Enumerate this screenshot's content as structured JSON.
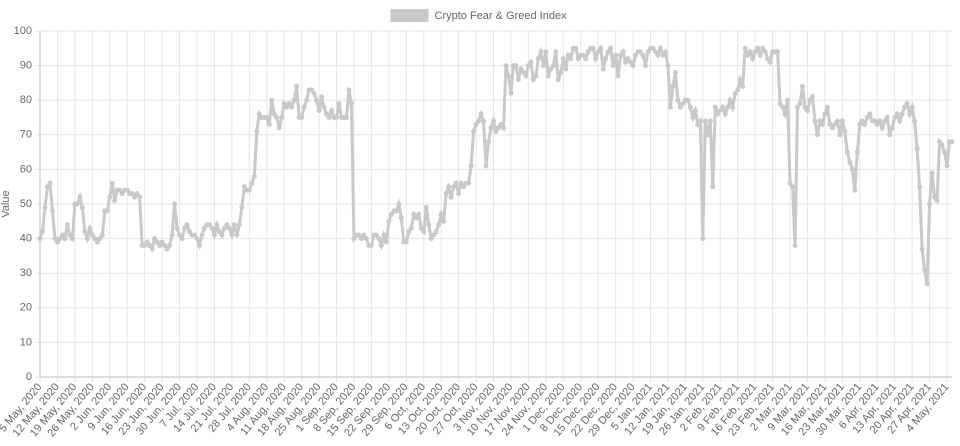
{
  "chart_data": {
    "type": "line",
    "y_label": "Value",
    "categories": [
      "5 May, 2020",
      null,
      null,
      null,
      null,
      null,
      null,
      "12 May, 2020",
      null,
      null,
      null,
      null,
      null,
      null,
      "19 May, 2020",
      null,
      null,
      null,
      null,
      null,
      null,
      "26 May, 2020",
      null,
      null,
      null,
      null,
      null,
      null,
      "2 Jun, 2020",
      null,
      null,
      null,
      null,
      null,
      null,
      "9 Jun, 2020",
      null,
      null,
      null,
      null,
      null,
      null,
      "16 Jun, 2020",
      null,
      null,
      null,
      null,
      null,
      null,
      "23 Jun, 2020",
      null,
      null,
      null,
      null,
      null,
      null,
      "30 Jun, 2020",
      null,
      null,
      null,
      null,
      null,
      null,
      "7 Jul, 2020",
      null,
      null,
      null,
      null,
      null,
      null,
      "14 Jul, 2020",
      null,
      null,
      null,
      null,
      null,
      null,
      "21 Jul, 2020",
      null,
      null,
      null,
      null,
      null,
      null,
      "28 Jul, 2020",
      null,
      null,
      null,
      null,
      null,
      null,
      "4 Aug, 2020",
      null,
      null,
      null,
      null,
      null,
      null,
      "11 Aug, 2020",
      null,
      null,
      null,
      null,
      null,
      null,
      "18 Aug, 2020",
      null,
      null,
      null,
      null,
      null,
      null,
      "25 Aug, 2020",
      null,
      null,
      null,
      null,
      null,
      null,
      "1 Sep, 2020",
      null,
      null,
      null,
      null,
      null,
      null,
      "8 Sep, 2020",
      null,
      null,
      null,
      null,
      null,
      null,
      "15 Sep, 2020",
      null,
      null,
      null,
      null,
      null,
      null,
      "22 Sep, 2020",
      null,
      null,
      null,
      null,
      null,
      null,
      "29 Sep, 2020",
      null,
      null,
      null,
      null,
      null,
      null,
      "6 Oct, 2020",
      null,
      null,
      null,
      null,
      null,
      null,
      "13 Oct, 2020",
      null,
      null,
      null,
      null,
      null,
      null,
      "20 Oct, 2020",
      null,
      null,
      null,
      null,
      null,
      null,
      "27 Oct, 2020",
      null,
      null,
      null,
      null,
      null,
      null,
      "3 Nov, 2020",
      null,
      null,
      null,
      null,
      null,
      null,
      "10 Nov, 2020",
      null,
      null,
      null,
      null,
      null,
      null,
      "17 Nov, 2020",
      null,
      null,
      null,
      null,
      null,
      null,
      "24 Nov, 2020",
      null,
      null,
      null,
      null,
      null,
      null,
      "1 Dec, 2020",
      null,
      null,
      null,
      null,
      null,
      null,
      "8 Dec, 2020",
      null,
      null,
      null,
      null,
      null,
      null,
      "15 Dec, 2020",
      null,
      null,
      null,
      null,
      null,
      null,
      "22 Dec, 2020",
      null,
      null,
      null,
      null,
      null,
      null,
      "29 Dec, 2020",
      null,
      null,
      null,
      null,
      null,
      null,
      "5 Jan, 2021",
      null,
      null,
      null,
      null,
      null,
      null,
      "12 Jan, 2021",
      null,
      null,
      null,
      null,
      null,
      null,
      "19 Jan, 2021",
      null,
      null,
      null,
      null,
      null,
      null,
      "26 Jan, 2021",
      null,
      null,
      null,
      null,
      null,
      null,
      "2 Feb, 2021",
      null,
      null,
      null,
      null,
      null,
      null,
      "9 Feb, 2021",
      null,
      null,
      null,
      null,
      null,
      null,
      "16 Feb, 2021",
      null,
      null,
      null,
      null,
      null,
      null,
      "23 Feb, 2021",
      null,
      null,
      null,
      null,
      null,
      null,
      "2 Mar, 2021",
      null,
      null,
      null,
      null,
      null,
      null,
      "9 Mar, 2021",
      null,
      null,
      null,
      null,
      null,
      null,
      "16 Mar, 2021",
      null,
      null,
      null,
      null,
      null,
      null,
      "23 Mar, 2021",
      null,
      null,
      null,
      null,
      null,
      null,
      "30 Mar, 2021",
      null,
      null,
      null,
      null,
      null,
      null,
      "6 Apr, 2021",
      null,
      null,
      null,
      null,
      null,
      null,
      "13 Apr, 2021",
      null,
      null,
      null,
      null,
      null,
      null,
      "20 Apr, 2021",
      null,
      null,
      null,
      null,
      null,
      null,
      "27 Apr, 2021",
      null,
      null,
      null,
      null,
      null,
      null,
      "4 May, 2021",
      null,
      null
    ],
    "series": [
      {
        "name": "Crypto Fear & Greed Index",
        "color": "#c9c9c9",
        "values": [
          40,
          42,
          49,
          55,
          56,
          48,
          40,
          39,
          40,
          41,
          40,
          44,
          41,
          40,
          50,
          50,
          52,
          49,
          42,
          40,
          43,
          41,
          40,
          39,
          40,
          41,
          48,
          48,
          52,
          56,
          51,
          54,
          54,
          53,
          54,
          54,
          53,
          53,
          52,
          53,
          52,
          38,
          38,
          39,
          38,
          37,
          40,
          39,
          38,
          39,
          38,
          37,
          38,
          41,
          50,
          43,
          41,
          40,
          43,
          44,
          42,
          41,
          41,
          40,
          38,
          41,
          43,
          44,
          44,
          43,
          41,
          44,
          42,
          41,
          43,
          44,
          43,
          41,
          44,
          41,
          44,
          49,
          55,
          54,
          54,
          56,
          58,
          71,
          76,
          75,
          75,
          75,
          73,
          80,
          76,
          75,
          72,
          75,
          79,
          78,
          79,
          78,
          80,
          84,
          75,
          75,
          78,
          80,
          83,
          83,
          82,
          80,
          77,
          81,
          78,
          76,
          75,
          77,
          75,
          75,
          79,
          75,
          75,
          75,
          83,
          79,
          40,
          41,
          41,
          40,
          41,
          40,
          38,
          38,
          41,
          41,
          40,
          38,
          41,
          39,
          45,
          47,
          48,
          48,
          50,
          46,
          39,
          39,
          42,
          43,
          47,
          46,
          47,
          43,
          42,
          49,
          44,
          40,
          41,
          42,
          44,
          47,
          45,
          53,
          55,
          52,
          55,
          56,
          53,
          56,
          55,
          56,
          56,
          61,
          71,
          73,
          74,
          76,
          74,
          61,
          68,
          72,
          74,
          71,
          72,
          73,
          72,
          90,
          87,
          82,
          90,
          90,
          86,
          89,
          88,
          87,
          90,
          91,
          86,
          87,
          92,
          94,
          90,
          94,
          87,
          89,
          90,
          94,
          86,
          88,
          92,
          89,
          93,
          92,
          95,
          95,
          92,
          93,
          93,
          92,
          94,
          95,
          95,
          92,
          94,
          95,
          89,
          92,
          94,
          95,
          90,
          93,
          87,
          93,
          94,
          91,
          92,
          91,
          90,
          93,
          94,
          94,
          93,
          90,
          94,
          95,
          95,
          94,
          93,
          95,
          93,
          94,
          90,
          78,
          84,
          88,
          80,
          78,
          79,
          80,
          80,
          78,
          75,
          77,
          73,
          74,
          40,
          74,
          70,
          74,
          55,
          78,
          76,
          77,
          78,
          76,
          78,
          80,
          78,
          82,
          83,
          86,
          84,
          95,
          93,
          94,
          92,
          94,
          95,
          93,
          95,
          94,
          92,
          91,
          94,
          94,
          94,
          79,
          78,
          76,
          80,
          56,
          55,
          38,
          78,
          79,
          84,
          78,
          77,
          80,
          81,
          74,
          70,
          74,
          73,
          76,
          78,
          73,
          72,
          73,
          74,
          70,
          74,
          71,
          65,
          62,
          60,
          54,
          65,
          73,
          74,
          73,
          75,
          76,
          74,
          74,
          73,
          74,
          72,
          74,
          75,
          70,
          72,
          75,
          76,
          74,
          76,
          78,
          79,
          76,
          78,
          74,
          66,
          55,
          37,
          31,
          27,
          50,
          59,
          52,
          51,
          68,
          67,
          65,
          61,
          68,
          68
        ]
      }
    ],
    "ylim": [
      0,
      100
    ],
    "yticks": [
      0,
      10,
      20,
      30,
      40,
      50,
      60,
      70,
      80,
      90,
      100
    ],
    "grid": true,
    "legend": "top"
  }
}
